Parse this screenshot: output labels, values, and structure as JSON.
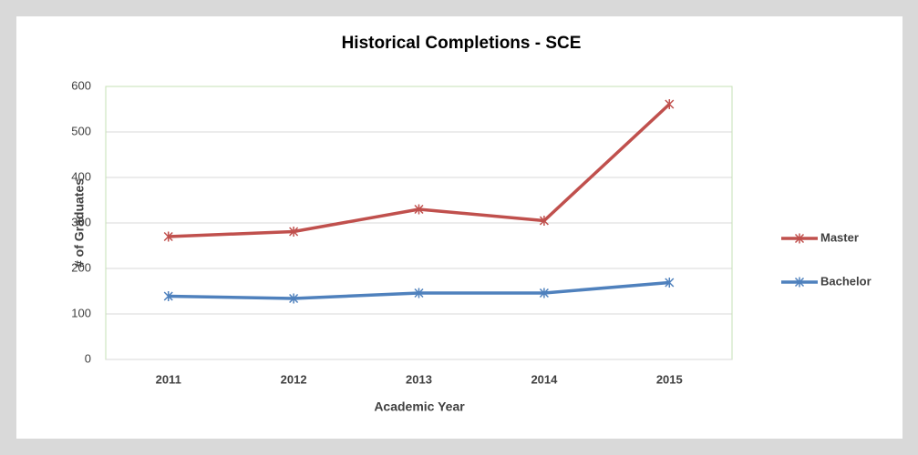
{
  "chart_data": {
    "type": "line",
    "title": "Historical Completions - SCE",
    "x_label": "Academic Year",
    "y_label": "# of Graduates",
    "categories": [
      "2011",
      "2012",
      "2013",
      "2014",
      "2015"
    ],
    "series": [
      {
        "name": "Master",
        "color": "#c0504d",
        "values": [
          270,
          281,
          330,
          305,
          561
        ]
      },
      {
        "name": "Bachelor",
        "color": "#4f81bd",
        "values": [
          139,
          134,
          146,
          146,
          169
        ]
      }
    ],
    "ylim": [
      0,
      600
    ],
    "yticks": [
      0,
      100,
      200,
      300,
      400,
      500,
      600
    ],
    "grid": true,
    "legend": "right"
  }
}
